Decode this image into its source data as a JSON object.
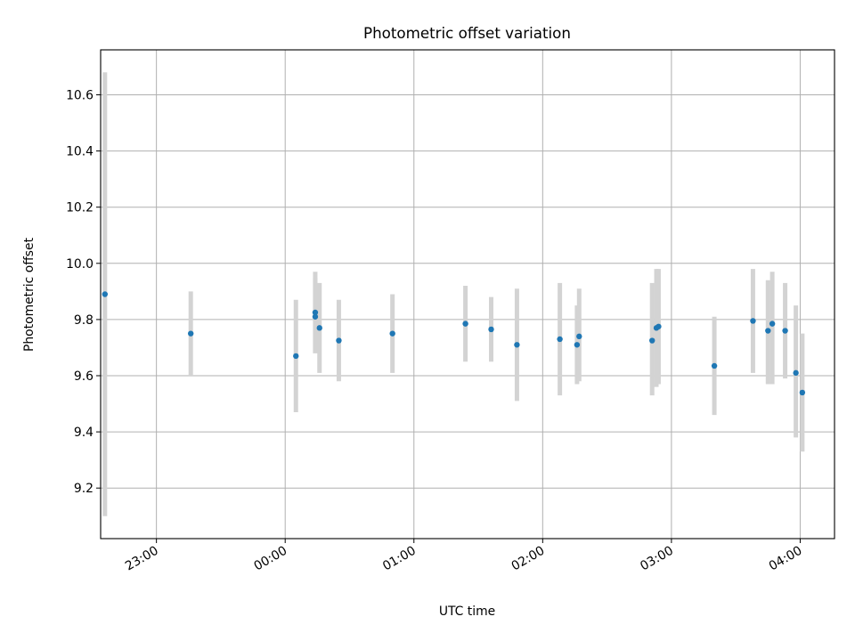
{
  "chart_data": {
    "type": "scatter",
    "title": "Photometric offset variation",
    "xlabel": "UTC time",
    "ylabel": "Photometric offset",
    "x_axis_type": "time",
    "x_range": [
      "22:34",
      "04:16"
    ],
    "ylim": [
      9.02,
      10.76
    ],
    "x_ticks": [
      "23:00",
      "00:00",
      "01:00",
      "02:00",
      "03:00",
      "04:00"
    ],
    "y_ticks": [
      9.2,
      9.4,
      9.6,
      9.8,
      10.0,
      10.2,
      10.4,
      10.6
    ],
    "grid": true,
    "point_color": "#1f77b4",
    "errorbar_color": "#d3d3d3",
    "points": [
      {
        "x": "22:36",
        "y": 9.89,
        "err_low": 9.1,
        "err_high": 10.68
      },
      {
        "x": "23:16",
        "y": 9.75,
        "err_low": 9.6,
        "err_high": 9.9
      },
      {
        "x": "00:05",
        "y": 9.67,
        "err_low": 9.47,
        "err_high": 9.87
      },
      {
        "x": "00:14",
        "y": 9.825,
        "err_low": 9.68,
        "err_high": 9.97
      },
      {
        "x": "00:14",
        "y": 9.81,
        "err_low": 9.68,
        "err_high": 9.95
      },
      {
        "x": "00:16",
        "y": 9.77,
        "err_low": 9.61,
        "err_high": 9.93
      },
      {
        "x": "00:25",
        "y": 9.725,
        "err_low": 9.58,
        "err_high": 9.87
      },
      {
        "x": "00:50",
        "y": 9.75,
        "err_low": 9.61,
        "err_high": 9.89
      },
      {
        "x": "01:24",
        "y": 9.785,
        "err_low": 9.65,
        "err_high": 9.92
      },
      {
        "x": "01:36",
        "y": 9.765,
        "err_low": 9.65,
        "err_high": 9.88
      },
      {
        "x": "01:48",
        "y": 9.71,
        "err_low": 9.51,
        "err_high": 9.91
      },
      {
        "x": "02:08",
        "y": 9.73,
        "err_low": 9.53,
        "err_high": 9.93
      },
      {
        "x": "02:16",
        "y": 9.71,
        "err_low": 9.57,
        "err_high": 9.85
      },
      {
        "x": "02:17",
        "y": 9.74,
        "err_low": 9.58,
        "err_high": 9.91
      },
      {
        "x": "02:51",
        "y": 9.725,
        "err_low": 9.53,
        "err_high": 9.93
      },
      {
        "x": "02:53",
        "y": 9.77,
        "err_low": 9.56,
        "err_high": 9.98
      },
      {
        "x": "02:54",
        "y": 9.775,
        "err_low": 9.57,
        "err_high": 9.98
      },
      {
        "x": "03:20",
        "y": 9.635,
        "err_low": 9.46,
        "err_high": 9.81
      },
      {
        "x": "03:38",
        "y": 9.795,
        "err_low": 9.61,
        "err_high": 9.98
      },
      {
        "x": "03:45",
        "y": 9.76,
        "err_low": 9.57,
        "err_high": 9.94
      },
      {
        "x": "03:47",
        "y": 9.785,
        "err_low": 9.57,
        "err_high": 9.97
      },
      {
        "x": "03:53",
        "y": 9.76,
        "err_low": 9.59,
        "err_high": 9.93
      },
      {
        "x": "03:58",
        "y": 9.61,
        "err_low": 9.38,
        "err_high": 9.85
      },
      {
        "x": "04:01",
        "y": 9.54,
        "err_low": 9.33,
        "err_high": 9.75
      }
    ]
  }
}
